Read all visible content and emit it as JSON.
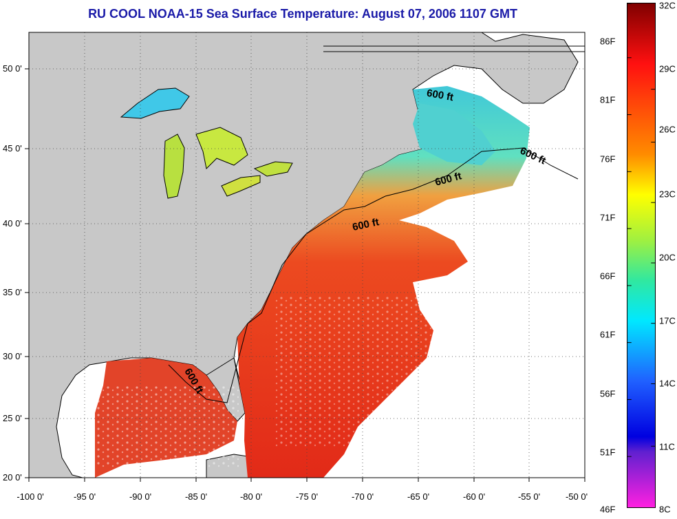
{
  "title": "RU COOL  NOAA-15  Sea Surface Temperature:  August 07, 2006 1107 GMT",
  "axes": {
    "x_ticks": [
      "-100 0'",
      "-95 0'",
      "-90 0'",
      "-85 0'",
      "-80 0'",
      "-75 0'",
      "-70 0'",
      "-65 0'",
      "-60 0'",
      "-55 0'",
      "-50 0'"
    ],
    "y_ticks": [
      "50 0'",
      "45 0'",
      "40 0'",
      "35 0'",
      "30 0'",
      "25 0'",
      "20 0'"
    ]
  },
  "colorbar": {
    "fahrenheit_ticks": [
      "86F",
      "81F",
      "76F",
      "71F",
      "66F",
      "61F",
      "56F",
      "51F",
      "46F"
    ],
    "celsius_ticks": [
      "32C",
      "29C",
      "26C",
      "23C",
      "20C",
      "17C",
      "14C",
      "11C",
      "8C"
    ]
  },
  "contour_labels": [
    "600 ft",
    "600 ft",
    "600 ft",
    "600 ft",
    "600 ft"
  ],
  "colors": {
    "land": "#c8c8c8",
    "ocean_nodata": "#ffffff",
    "title": "#1a1aa8",
    "warm": "#e8301c",
    "cool": "#40d8e0"
  }
}
